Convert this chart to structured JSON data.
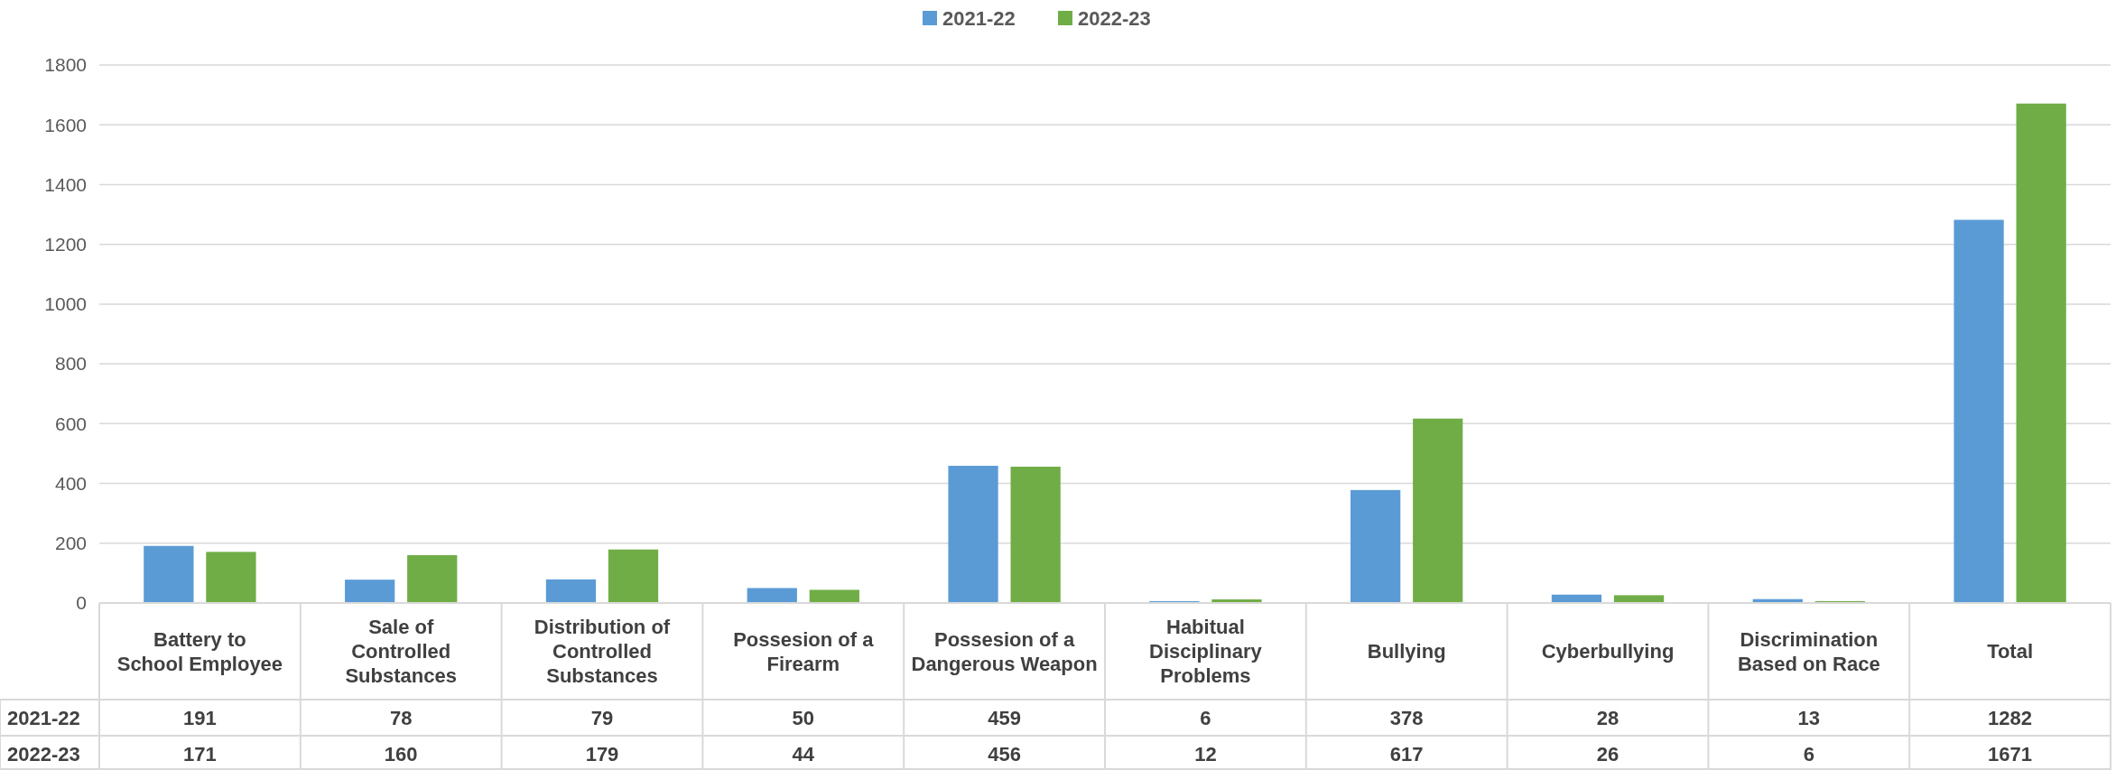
{
  "chart_data": {
    "type": "bar",
    "categories": [
      "Battery to School Employee",
      "Sale of Controlled Substances",
      "Distribution of Controlled Substances",
      "Possesion of a Firearm",
      "Possesion of a Dangerous Weapon",
      "Habitual Disciplinary Problems",
      "Bullying",
      "Cyberbullying",
      "Discrimination Based on Race",
      "Total"
    ],
    "series": [
      {
        "name": "2021-22",
        "color": "#5b9bd5",
        "values": [
          191,
          78,
          79,
          50,
          459,
          6,
          378,
          28,
          13,
          1282
        ]
      },
      {
        "name": "2022-23",
        "color": "#70ad47",
        "values": [
          171,
          160,
          179,
          44,
          456,
          12,
          617,
          26,
          6,
          1671
        ]
      }
    ],
    "ylim": [
      0,
      1800
    ],
    "yticks": [
      0,
      200,
      400,
      600,
      800,
      1000,
      1200,
      1400,
      1600,
      1800
    ],
    "grid": "y",
    "legend": "top",
    "data_labels": true
  }
}
